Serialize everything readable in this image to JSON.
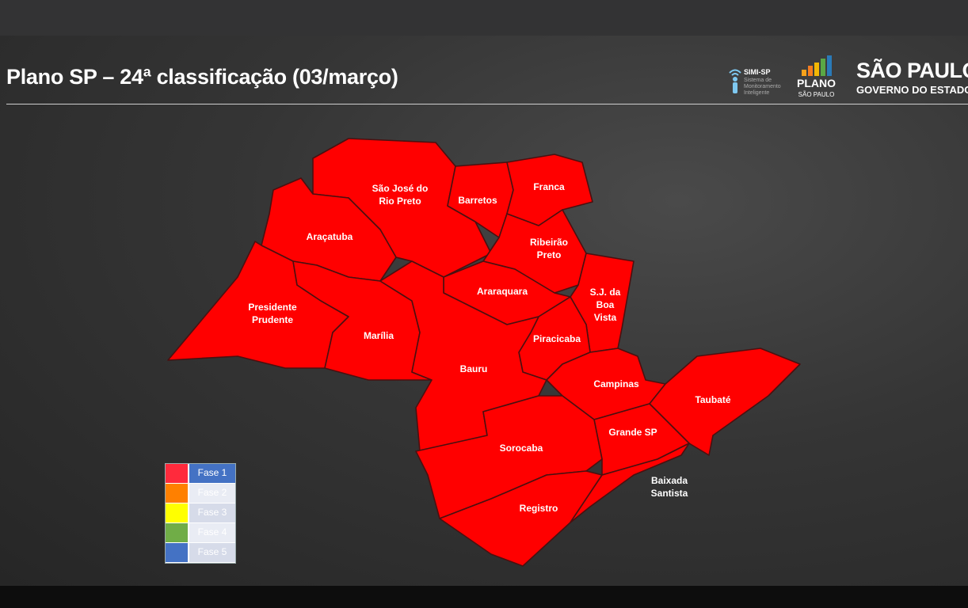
{
  "title": "Plano SP – 24ª classificação (03/março)",
  "logos": {
    "simi": {
      "name": "SIMI-SP",
      "subtitle": "Sistema de Monitoramento Inteligente"
    },
    "plano": {
      "name": "PLANO",
      "subtitle": "SÃO PAULO"
    },
    "governo": {
      "name": "SÃO PAULO",
      "subtitle": "GOVERNO DO ESTADO"
    }
  },
  "map": {
    "regions": [
      {
        "name": "São José do Rio Preto",
        "label": [
          "São José do",
          "Rio Preto"
        ],
        "phase": "Fase 1"
      },
      {
        "name": "Barretos",
        "label": [
          "Barretos"
        ],
        "phase": "Fase 1"
      },
      {
        "name": "Franca",
        "label": [
          "Franca"
        ],
        "phase": "Fase 1"
      },
      {
        "name": "Araçatuba",
        "label": [
          "Araçatuba"
        ],
        "phase": "Fase 1"
      },
      {
        "name": "Ribeirão Preto",
        "label": [
          "Ribeirão",
          "Preto"
        ],
        "phase": "Fase 1"
      },
      {
        "name": "Araraquara",
        "label": [
          "Araraquara"
        ],
        "phase": "Fase 1"
      },
      {
        "name": "S.J. da Boa Vista",
        "label": [
          "S.J. da",
          "Boa",
          "Vista"
        ],
        "phase": "Fase 1"
      },
      {
        "name": "Presidente Prudente",
        "label": [
          "Presidente",
          "Prudente"
        ],
        "phase": "Fase 1"
      },
      {
        "name": "Marília",
        "label": [
          "Marília"
        ],
        "phase": "Fase 1"
      },
      {
        "name": "Piracicaba",
        "label": [
          "Piracicaba"
        ],
        "phase": "Fase 1"
      },
      {
        "name": "Bauru",
        "label": [
          "Bauru"
        ],
        "phase": "Fase 1"
      },
      {
        "name": "Campinas",
        "label": [
          "Campinas"
        ],
        "phase": "Fase 1"
      },
      {
        "name": "Taubaté",
        "label": [
          "Taubaté"
        ],
        "phase": "Fase 1"
      },
      {
        "name": "Grande SP",
        "label": [
          "Grande SP"
        ],
        "phase": "Fase 1"
      },
      {
        "name": "Sorocaba",
        "label": [
          "Sorocaba"
        ],
        "phase": "Fase 1"
      },
      {
        "name": "Registro",
        "label": [
          "Registro"
        ],
        "phase": "Fase 1"
      },
      {
        "name": "Baixada Santista",
        "label": [
          "Baixada",
          "Santista"
        ],
        "phase": "Fase 1"
      }
    ]
  },
  "legend": [
    {
      "label": "Fase 1",
      "color": "#ff2a3c",
      "active": true
    },
    {
      "label": "Fase 2",
      "color": "#ff8000",
      "active": false
    },
    {
      "label": "Fase 3",
      "color": "#ffff00",
      "active": false
    },
    {
      "label": "Fase 4",
      "color": "#70ad47",
      "active": false
    },
    {
      "label": "Fase 5",
      "color": "#4472c4",
      "active": false
    }
  ],
  "colors": {
    "fase1_map": "#ff0000",
    "legend_active_bg": "#4472c4",
    "legend_inactive_bg": "#d6dbe9"
  }
}
